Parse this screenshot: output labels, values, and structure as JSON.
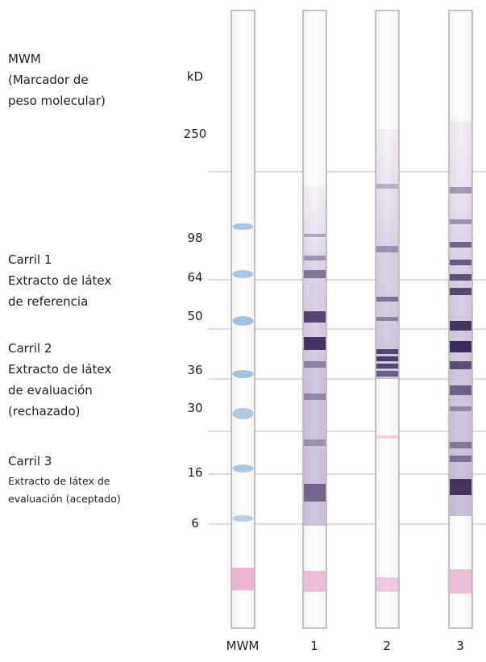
{
  "legend": {
    "mwm": [
      "MWM",
      "(Marcador de",
      "peso molecular)"
    ],
    "lane1": [
      "Carril 1",
      "Extracto de látex",
      "de referencia"
    ],
    "lane2": [
      "Carril  2",
      "Extracto de látex",
      "de evaluación",
      "(rechazado)"
    ],
    "lane3": [
      "Carril 3",
      "Extracto de látex de",
      "evaluación (aceptado)"
    ]
  },
  "scale": {
    "unit": "kD",
    "markers": [
      "250",
      "98",
      "64",
      "50",
      "36",
      "30",
      "16",
      "6"
    ]
  },
  "lanes": {
    "labels": [
      "MWM",
      "1",
      "2",
      "3"
    ]
  },
  "colors": {
    "strip_border": "#8a8a8a",
    "reference_line": "#b8b8b8",
    "marker_blue": "#8fb3d6",
    "band_purple": "#2b1a4e",
    "band_pink": "#e7a9c9"
  }
}
